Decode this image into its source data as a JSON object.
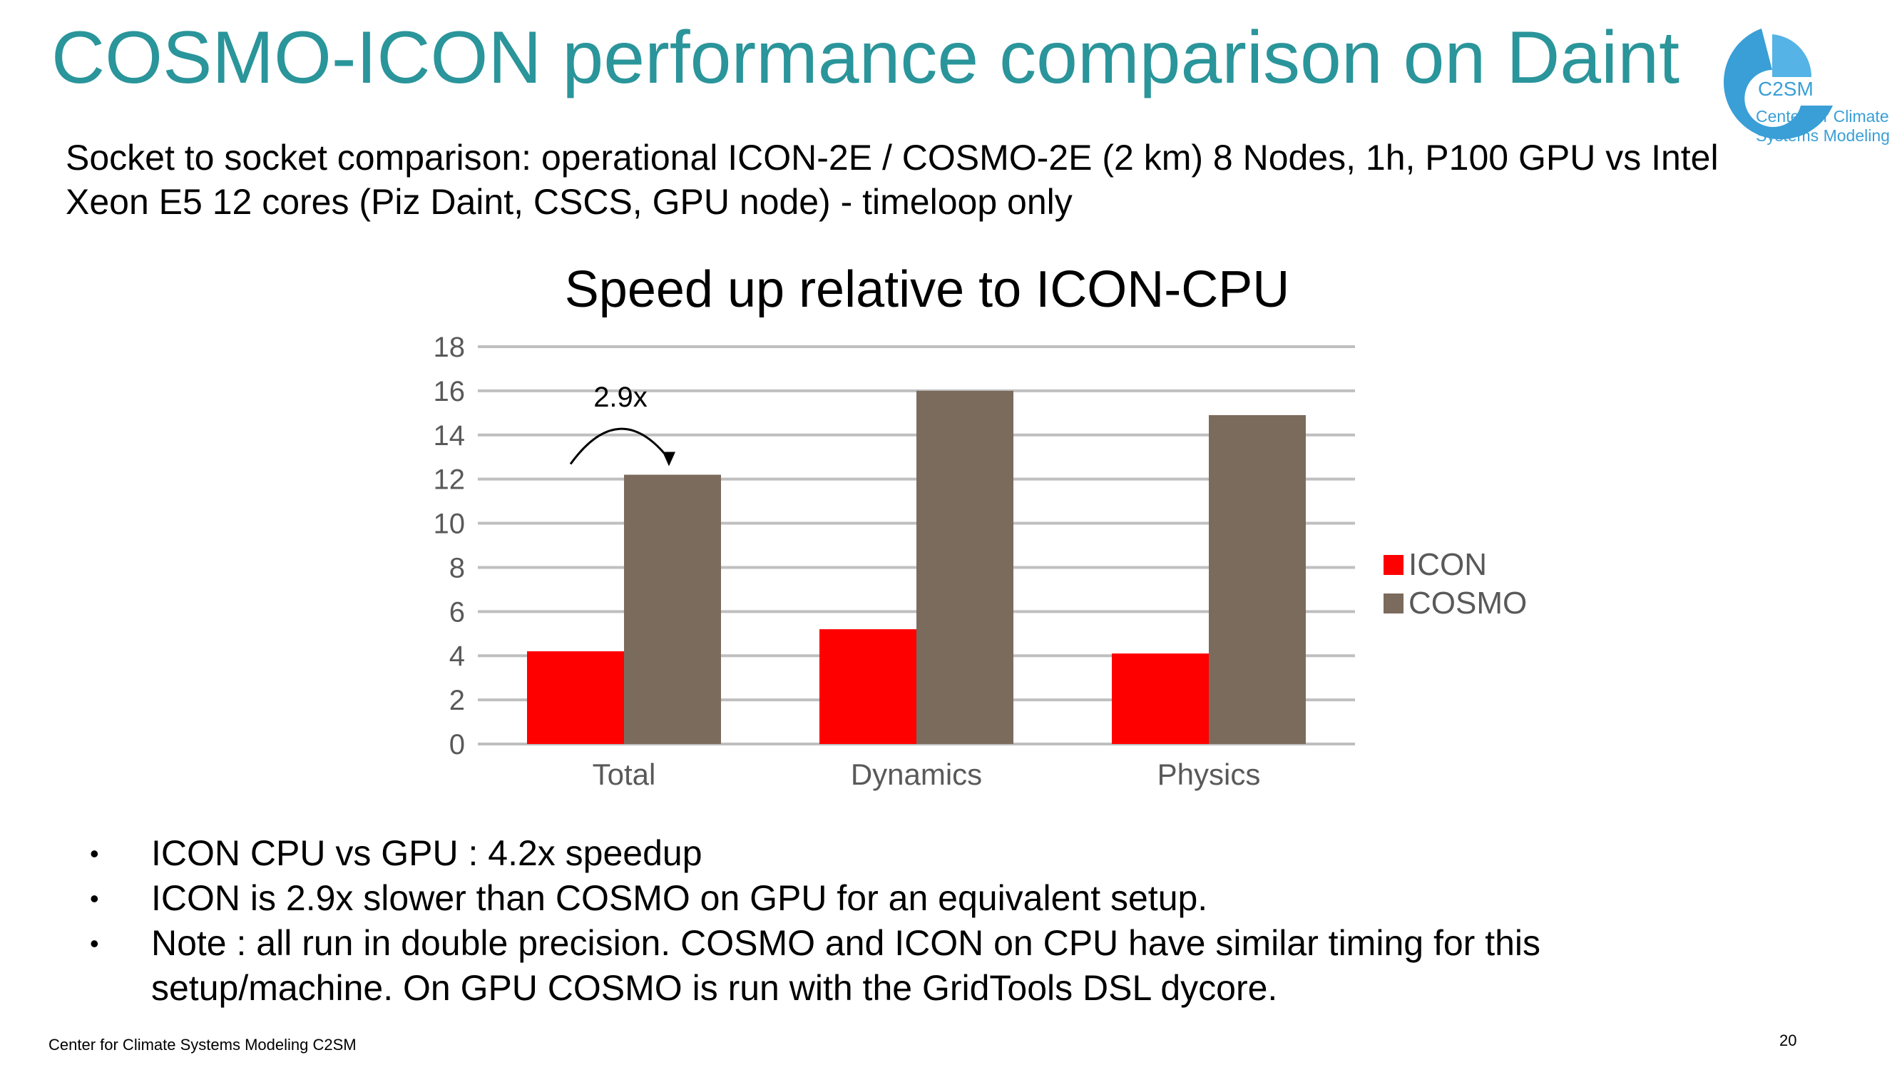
{
  "slide": {
    "title": "COSMO-ICON performance comparison on Daint",
    "subtitle": "Socket to socket comparison: operational ICON-2E / COSMO-2E (2 km) 8 Nodes, 1h, P100 GPU vs Intel Xeon E5 12 cores (Piz Daint, CSCS, GPU node) - timeloop only",
    "logo": {
      "mark": "C2SM",
      "line1": "Center for Climate",
      "line2": "Systems Modeling"
    },
    "bullets": [
      "ICON CPU vs GPU : 4.2x speedup",
      "ICON is 2.9x slower than COSMO on GPU for an equivalent setup.",
      "Note : all run in double precision. COSMO and ICON on CPU have similar timing for this setup/machine. On GPU COSMO is run with the GridTools DSL dycore."
    ],
    "bullet_glyph": "•",
    "footer": "Center for Climate Systems Modeling C2SM",
    "page_number": "20"
  },
  "colors": {
    "title": "#2a959a",
    "icon": "#ff0000",
    "cosmo": "#7b6b5d",
    "grid": "#bfbfbf",
    "tick_text": "#595959",
    "logo": "#3a9fd6"
  },
  "chart_data": {
    "type": "bar",
    "title": "Speed up relative to ICON-CPU",
    "categories": [
      "Total",
      "Dynamics",
      "Physics"
    ],
    "series": [
      {
        "name": "ICON",
        "values": [
          4.2,
          5.2,
          4.1
        ],
        "color": "#ff0000"
      },
      {
        "name": "COSMO",
        "values": [
          12.2,
          16.0,
          14.9
        ],
        "color": "#7b6b5d"
      }
    ],
    "ylim": [
      0,
      18
    ],
    "yticks": [
      0,
      2,
      4,
      6,
      8,
      10,
      12,
      14,
      16,
      18
    ],
    "xlabel": "",
    "ylabel": "",
    "grid": true,
    "legend": "right",
    "annotation": {
      "text": "2.9x",
      "category": "Total"
    }
  }
}
